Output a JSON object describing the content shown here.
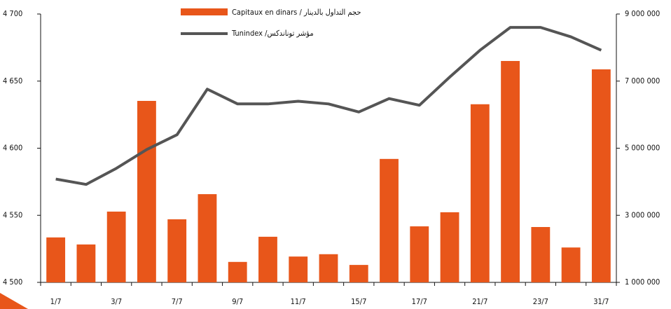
{
  "chart_data": {
    "type": "combo",
    "categories": [
      "1/7",
      null,
      "3/7",
      null,
      "7/7",
      null,
      "9/7",
      null,
      "11/7",
      null,
      "15/7",
      null,
      "17/7",
      null,
      "21/7",
      null,
      "23/7",
      null,
      "31/7"
    ],
    "series": [
      {
        "name": "Capitaux en dinars / حجم التداول بالدينار",
        "type": "bar",
        "axis": "y2",
        "color": "#e8561a",
        "values": [
          2340000,
          2130000,
          3110000,
          6410000,
          2880000,
          3630000,
          1610000,
          2360000,
          1770000,
          1840000,
          1520000,
          4680000,
          2670000,
          3090000,
          6310000,
          7600000,
          2650000,
          2040000,
          7350000
        ]
      },
      {
        "name": "Tunindex /مؤشر توناندكس",
        "type": "line",
        "axis": "y",
        "color": "#555555",
        "values": [
          4577,
          4573,
          4585,
          4599,
          4610,
          4644,
          4633,
          4633,
          4635,
          4633,
          4627,
          4637,
          4632,
          4653,
          4673,
          4690,
          4690,
          4683,
          4673
        ]
      }
    ],
    "ylim": [
      4500,
      4700
    ],
    "yticks": [
      {
        "value": 4500,
        "label": "4 500"
      },
      {
        "value": 4550,
        "label": "4 550"
      },
      {
        "value": 4600,
        "label": "4 600"
      },
      {
        "value": 4650,
        "label": "4 650"
      },
      {
        "value": 4700,
        "label": "4 700"
      }
    ],
    "y2lim": [
      1000000,
      9000000
    ],
    "y2ticks": [
      {
        "value": 1000000,
        "label": "1 000 000"
      },
      {
        "value": 3000000,
        "label": "3 000 000"
      },
      {
        "value": 5000000,
        "label": "5 000 000"
      },
      {
        "value": 7000000,
        "label": "7 000 000"
      },
      {
        "value": 9000000,
        "label": "9 000 000"
      }
    ],
    "legend": "top"
  }
}
